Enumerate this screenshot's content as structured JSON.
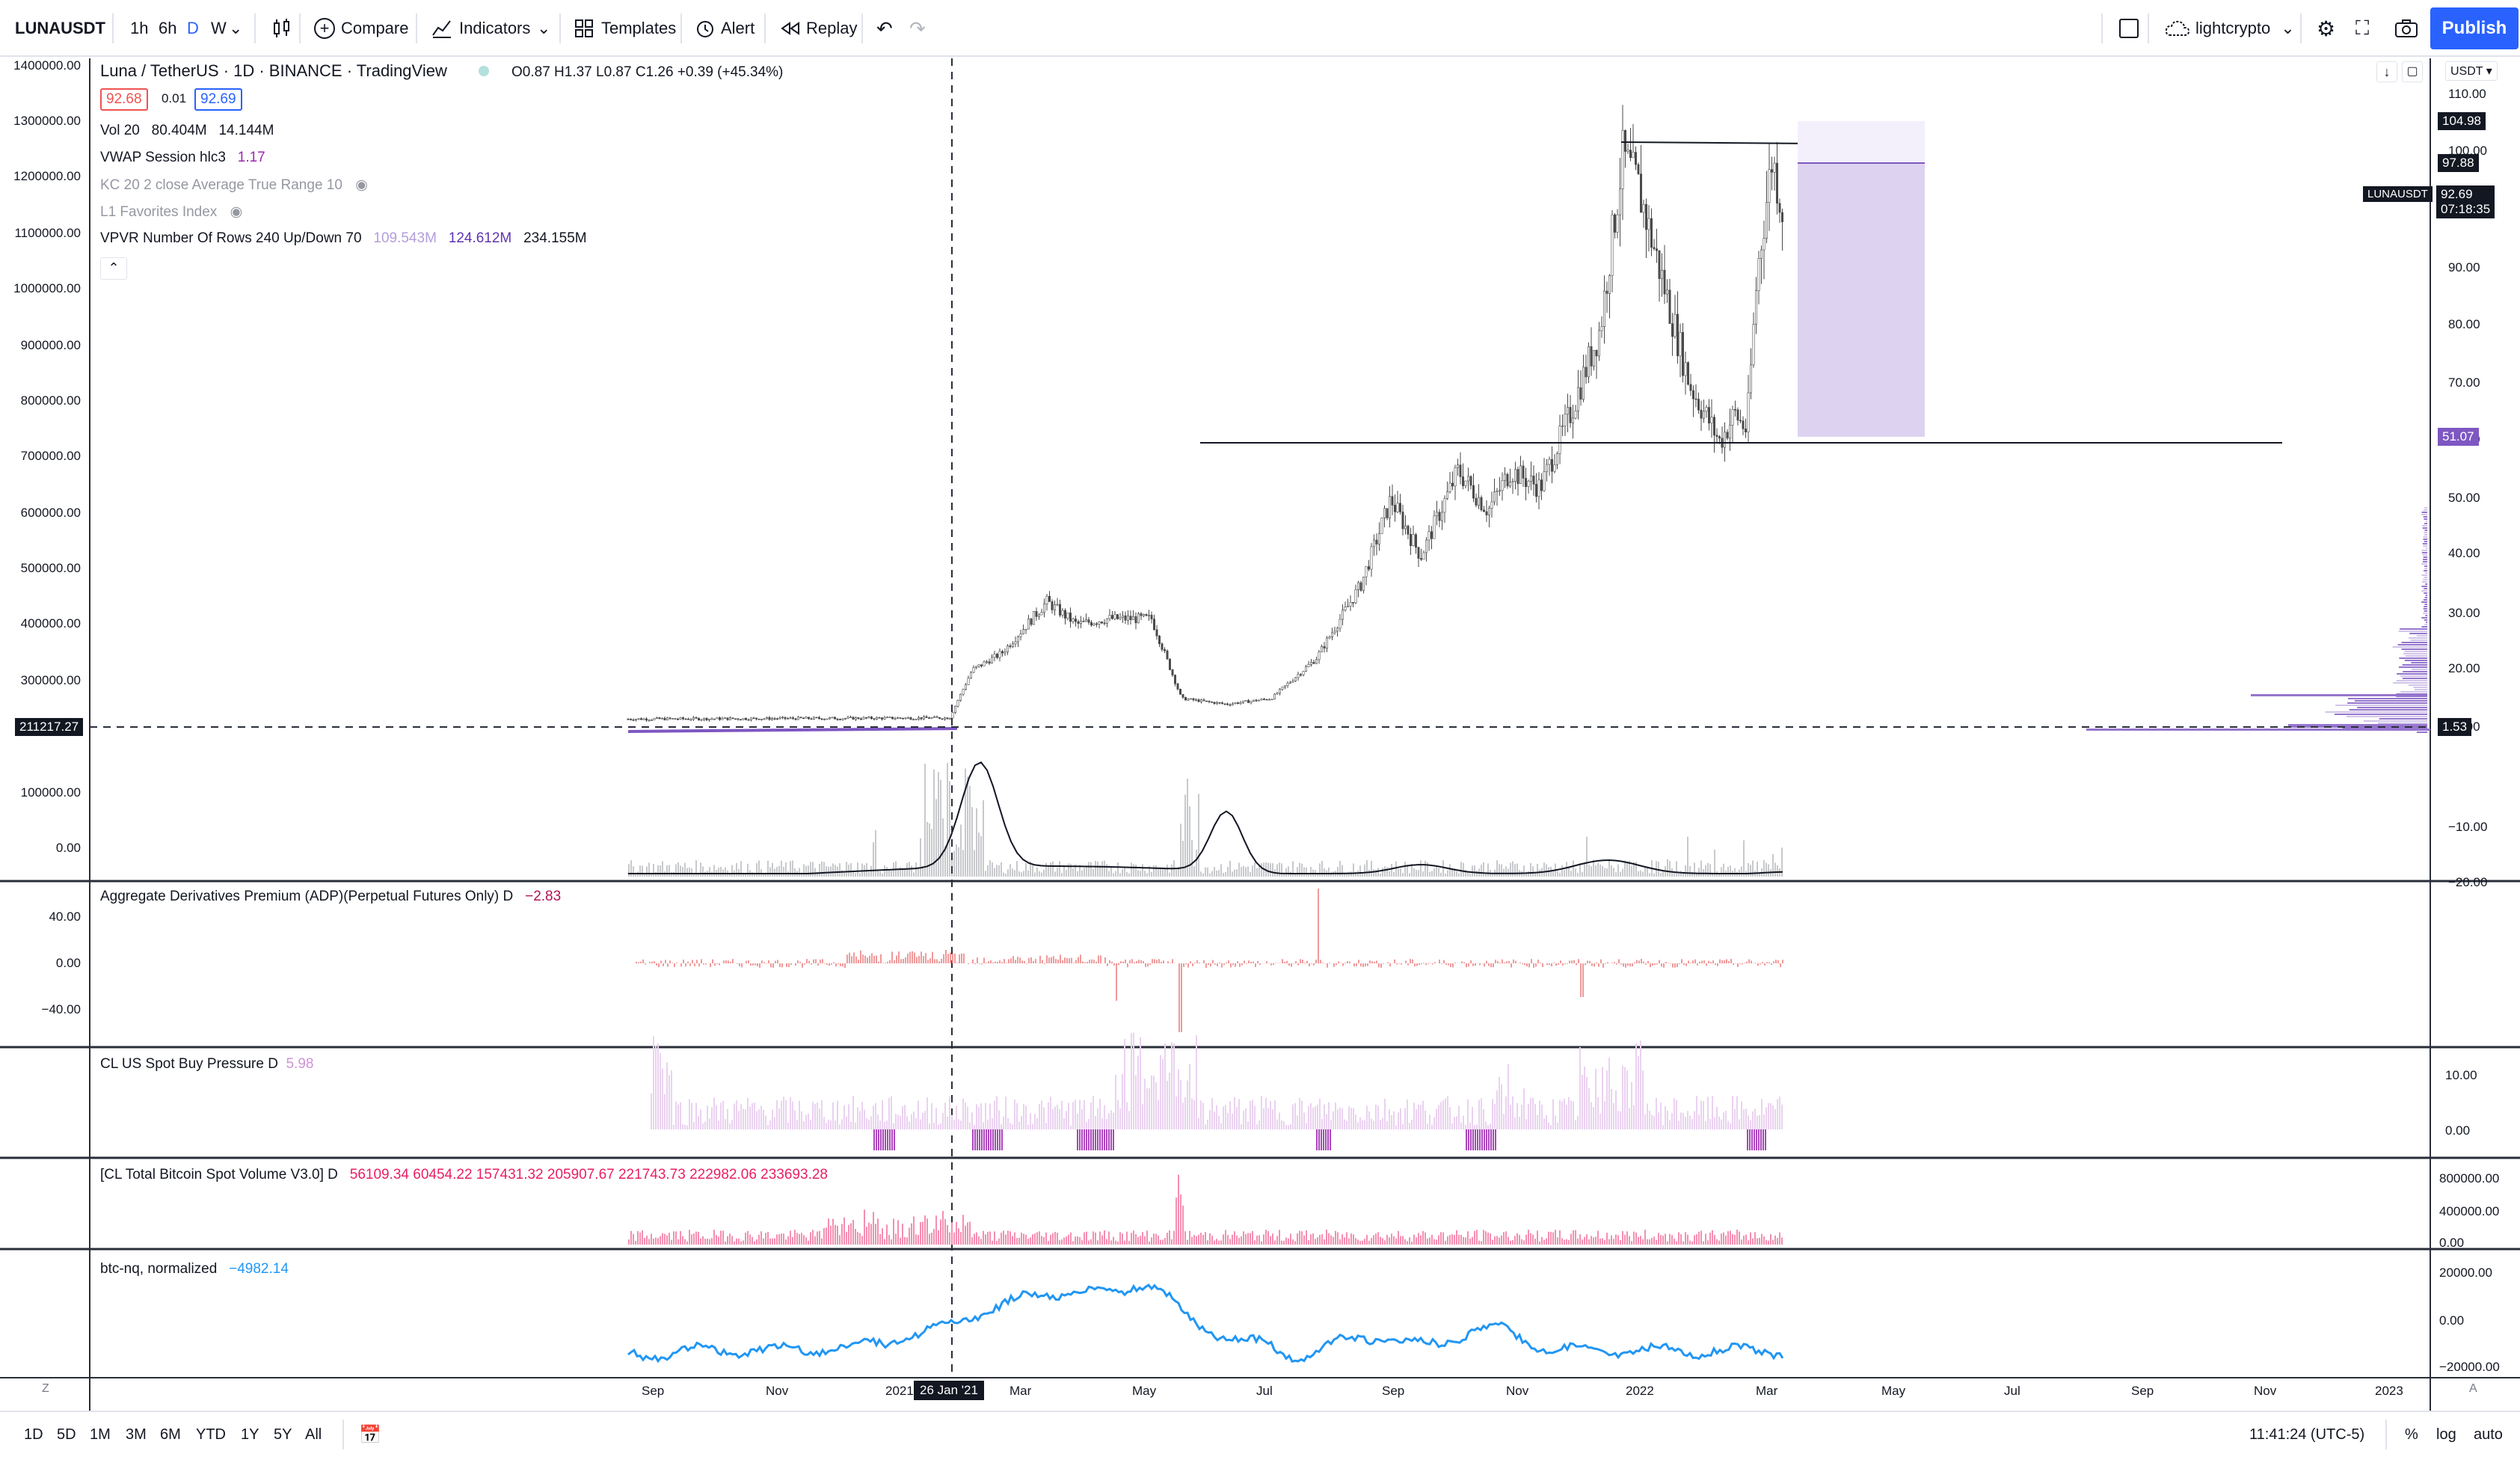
{
  "toolbar": {
    "symbol": "LUNAUSDT",
    "intervals": [
      "1h",
      "6h",
      "D",
      "W"
    ],
    "active_interval": "D",
    "compare_label": "Compare",
    "indicators_label": "Indicators",
    "templates_label": "Templates",
    "alert_label": "Alert",
    "replay_label": "Replay",
    "user": "lightcrypto",
    "publish_label": "Publish"
  },
  "main_legend": {
    "title": "Luna / TetherUS · 1D · BINANCE · TradingView",
    "ohlc": "O0.87  H1.37  L0.87  C1.26  +0.39 (+45.34%)",
    "bid": "92.68",
    "spread": "0.01",
    "ask": "92.69",
    "vol_label": "Vol 20",
    "vol_val1": "80.404M",
    "vol_val2": "14.144M",
    "vwap_label": "VWAP Session hlc3",
    "vwap_val": "1.17",
    "kc_label": "KC 20 2 close Average True Range 10",
    "l1_label": "L1 Favorites Index",
    "vpvr_label": "VPVR Number Of Rows 240 Up/Down 70",
    "vpvr_val1": "109.543M",
    "vpvr_val2": "124.612M",
    "vpvr_val3": "234.155M"
  },
  "left_axis": [
    "1400000.00",
    "1300000.00",
    "1200000.00",
    "1100000.00",
    "1000000.00",
    "900000.00",
    "800000.00",
    "700000.00",
    "600000.00",
    "500000.00",
    "400000.00",
    "300000.00",
    "100000.00",
    "0.00"
  ],
  "left_axis_badge": "211217.27",
  "right_axis": [
    "110.00",
    "100.00",
    "90.00",
    "80.00",
    "70.00",
    "60.00",
    "50.00",
    "40.00",
    "30.00",
    "20.00",
    "10.00",
    "−10.00",
    "−20.00"
  ],
  "right_currency": "USDT",
  "badges": {
    "top": "104.98",
    "second": "97.88",
    "symbol": "LUNAUSDT",
    "last": "92.69",
    "countdown": "07:18:35",
    "level": "51.07",
    "low": "1.53"
  },
  "pane_adp": {
    "label": "Aggregate Derivatives Premium (ADP)(Perpetual Futures Only) D",
    "value": "−2.83",
    "axis": [
      "40.00",
      "0.00",
      "−40.00"
    ]
  },
  "pane_buy": {
    "label": "CL US Spot Buy Pressure D",
    "value": "5.98",
    "axis": [
      "10.00",
      "0.00"
    ]
  },
  "pane_btcvol": {
    "label": "[CL Total Bitcoin Spot Volume V3.0] D",
    "values": "56109.34  60454.22  157431.32  205907.67  221743.73  222982.06  233693.28",
    "axis": [
      "800000.00",
      "400000.00",
      "0.00"
    ]
  },
  "pane_nq": {
    "label": "btc-nq, normalized",
    "value": "−4982.14",
    "axis": [
      "20000.00",
      "0.00",
      "−20000.00"
    ]
  },
  "time_axis": [
    "Sep",
    "Nov",
    "2021",
    "Mar",
    "May",
    "Jul",
    "Sep",
    "Nov",
    "2022",
    "Mar",
    "May",
    "Jul",
    "Sep",
    "Nov",
    "2023"
  ],
  "time_cursor": "26 Jan '21",
  "bottom": {
    "ranges": [
      "1D",
      "5D",
      "1M",
      "3M",
      "6M",
      "YTD",
      "1Y",
      "5Y",
      "All"
    ],
    "time": "11:41:24 (UTC-5)",
    "pct": "%",
    "log": "log",
    "auto": "auto"
  },
  "colors": {
    "accent": "#2962ff",
    "price_line": "#131722",
    "vpvr": "#9575cd",
    "adp": "#ef9a9a",
    "buy": "#ce93d8",
    "btcvol": "#f48fb1",
    "nq": "#2196f3"
  }
}
